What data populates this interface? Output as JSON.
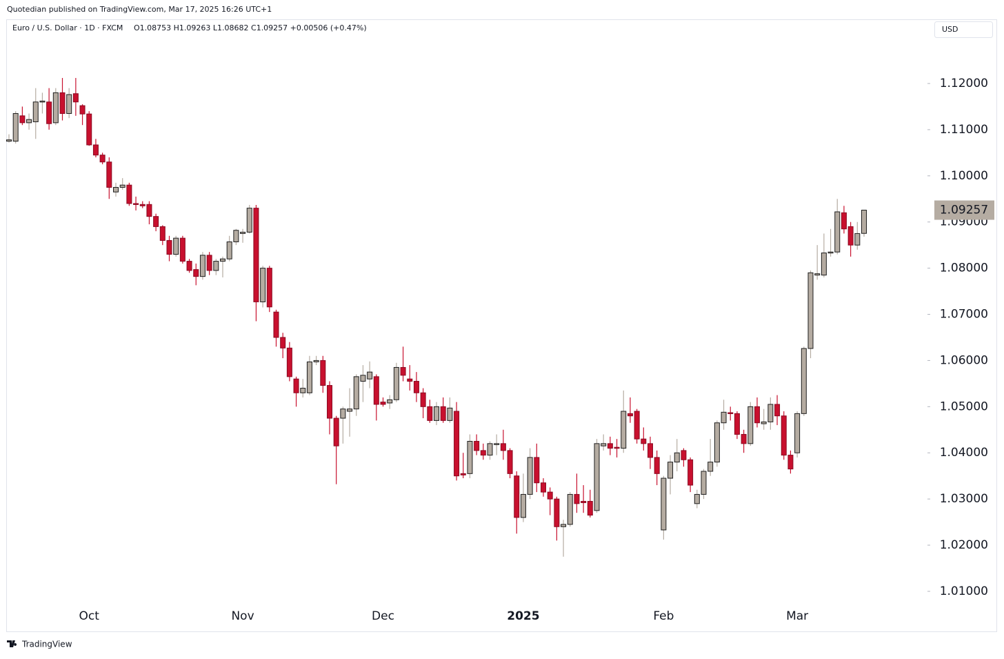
{
  "chart_data": {
    "type": "candlestick",
    "published": "Quotedian published on TradingView.com, Mar 17, 2025 16:26 UTC+1",
    "title": "Euro / U.S. Dollar · 1D · FXCM",
    "ohlc_text": "O1.08753  H1.09263  L1.08682  C1.09257  +0.00506 (+0.47%)",
    "currency": "USD",
    "footer": "TradingView",
    "up_color": "#b5aca2",
    "down_color": "#c8102e",
    "categories": [
      null,
      null,
      null,
      null,
      null,
      null,
      null,
      null,
      null,
      null,
      null,
      null,
      "Oct",
      null,
      null,
      null,
      null,
      null,
      null,
      null,
      null,
      null,
      null,
      null,
      null,
      null,
      null,
      null,
      null,
      null,
      null,
      null,
      null,
      null,
      null,
      "Nov",
      null,
      null,
      null,
      null,
      null,
      null,
      null,
      null,
      null,
      null,
      null,
      null,
      null,
      null,
      null,
      null,
      null,
      null,
      null,
      null,
      "Dec",
      null,
      null,
      null,
      null,
      null,
      null,
      null,
      null,
      null,
      null,
      null,
      null,
      null,
      null,
      null,
      null,
      null,
      null,
      null,
      null,
      "2025",
      null,
      null,
      null,
      null,
      null,
      null,
      null,
      null,
      null,
      null,
      null,
      null,
      null,
      null,
      null,
      null,
      null,
      null,
      null,
      null,
      "Feb",
      null,
      null,
      null,
      null,
      null,
      null,
      null,
      null,
      null,
      null,
      null,
      null,
      null,
      null,
      null,
      null,
      null,
      null,
      null,
      "Mar",
      null,
      null,
      null,
      null,
      null,
      null,
      null,
      null,
      null,
      null
    ],
    "open": [
      1.1075,
      1.1075,
      1.113,
      1.1115,
      1.1117,
      1.116,
      1.116,
      1.1115,
      1.118,
      1.1135,
      1.1178,
      1.1152,
      1.1134,
      1.1067,
      1.1045,
      1.103,
      1.0965,
      1.0975,
      1.098,
      1.094,
      1.0938,
      1.0938,
      1.0912,
      1.089,
      1.086,
      1.083,
      1.0865,
      1.0815,
      1.0797,
      1.0782,
      1.0828,
      1.0795,
      1.0815,
      1.082,
      1.0857,
      1.0875,
      1.0878,
      1.093,
      1.0727,
      1.08,
      1.0705,
      1.065,
      1.0627,
      1.056,
      1.053,
      1.053,
      1.0597,
      1.06,
      1.0546,
      1.0475,
      1.0475,
      1.049,
      1.0495,
      1.0555,
      1.056,
      1.0565,
      1.051,
      1.0508,
      1.0515,
      1.0585,
      1.056,
      1.0555,
      1.053,
      1.05,
      1.047,
      1.05,
      1.047,
      1.049,
      1.0355,
      1.0355,
      1.0425,
      1.0405,
      1.0395,
      1.0418,
      1.042,
      1.0405,
      1.035,
      1.026,
      1.031,
      1.039,
      1.0335,
      1.0315,
      1.03,
      1.024,
      1.0245,
      1.031,
      1.0295,
      1.0295,
      1.0275,
      1.0415,
      1.042,
      1.0412,
      1.041,
      1.0485,
      1.049,
      1.043,
      1.042,
      1.039,
      1.0233,
      1.0345,
      1.038,
      1.0405,
      1.0385,
      1.029,
      1.031,
      1.036,
      1.038,
      1.0465,
      1.0487,
      1.0485,
      1.044,
      1.042,
      1.05,
      1.0463,
      1.0467,
      1.0505,
      1.048,
      1.0395,
      1.04,
      1.0485,
      1.0626,
      1.0785,
      1.0785,
      1.0833,
      1.0835,
      1.092,
      1.089,
      1.085,
      1.08753
    ],
    "high": [
      1.109,
      1.114,
      1.115,
      1.1135,
      1.119,
      1.118,
      1.119,
      1.119,
      1.1212,
      1.119,
      1.1212,
      1.1155,
      1.114,
      1.108,
      1.105,
      1.104,
      1.0985,
      1.0995,
      1.0985,
      1.0955,
      1.0945,
      1.0945,
      1.0918,
      1.0893,
      1.087,
      1.087,
      1.087,
      1.082,
      1.081,
      1.0835,
      1.0835,
      1.082,
      1.0825,
      1.087,
      1.0885,
      1.0885,
      1.0937,
      1.0937,
      1.0805,
      1.0805,
      1.071,
      1.066,
      1.064,
      1.0565,
      1.056,
      1.061,
      1.061,
      1.061,
      1.0555,
      1.048,
      1.05,
      1.054,
      1.057,
      1.059,
      1.0598,
      1.057,
      1.052,
      1.0525,
      1.0595,
      1.063,
      1.059,
      1.0575,
      1.054,
      1.0515,
      1.051,
      1.052,
      1.052,
      1.051,
      1.04,
      1.044,
      1.044,
      1.042,
      1.0425,
      1.044,
      1.045,
      1.041,
      1.036,
      1.0355,
      1.041,
      1.042,
      1.0345,
      1.0325,
      1.0305,
      1.0255,
      1.0315,
      1.0355,
      1.033,
      1.032,
      1.043,
      1.044,
      1.0435,
      1.043,
      1.0535,
      1.052,
      1.0495,
      1.0455,
      1.0435,
      1.0405,
      1.035,
      1.0395,
      1.043,
      1.041,
      1.039,
      1.032,
      1.0365,
      1.043,
      1.047,
      1.0515,
      1.05,
      1.049,
      1.045,
      1.051,
      1.052,
      1.0495,
      1.052,
      1.0525,
      1.049,
      1.0405,
      1.049,
      1.063,
      1.0795,
      1.085,
      1.0875,
      1.0885,
      1.095,
      1.0935,
      1.09,
      1.09,
      1.09263
    ],
    "low": [
      1.1072,
      1.107,
      1.111,
      1.11,
      1.108,
      1.1135,
      1.11,
      1.111,
      1.112,
      1.1125,
      1.113,
      1.111,
      1.1065,
      1.104,
      1.1025,
      1.095,
      1.0955,
      1.097,
      1.0935,
      1.0925,
      1.093,
      1.0895,
      1.088,
      1.085,
      1.0815,
      1.0825,
      1.081,
      1.079,
      1.0763,
      1.0775,
      1.0785,
      1.0785,
      1.078,
      1.0815,
      1.085,
      1.0855,
      1.0875,
      1.0685,
      1.0715,
      1.0705,
      1.063,
      1.0605,
      1.0555,
      1.05,
      1.052,
      1.0525,
      1.059,
      1.053,
      1.044,
      1.0332,
      1.042,
      1.0435,
      1.048,
      1.051,
      1.054,
      1.047,
      1.05,
      1.0495,
      1.051,
      1.0555,
      1.0535,
      1.051,
      1.0475,
      1.0465,
      1.046,
      1.0465,
      1.0465,
      1.034,
      1.0345,
      1.0345,
      1.0395,
      1.0385,
      1.0385,
      1.0395,
      1.0385,
      1.0345,
      1.0225,
      1.025,
      1.03,
      1.0315,
      1.0305,
      1.0265,
      1.021,
      1.0175,
      1.024,
      1.027,
      1.027,
      1.026,
      1.027,
      1.0405,
      1.0395,
      1.039,
      1.04,
      1.0465,
      1.042,
      1.0405,
      1.0365,
      1.033,
      1.0212,
      1.031,
      1.036,
      1.037,
      1.0315,
      1.028,
      1.03,
      1.035,
      1.037,
      1.045,
      1.047,
      1.043,
      1.04,
      1.0415,
      1.0455,
      1.045,
      1.045,
      1.046,
      1.0385,
      1.0355,
      1.039,
      1.048,
      1.0605,
      1.0775,
      1.078,
      1.0825,
      1.083,
      1.0875,
      1.0825,
      1.084,
      1.08682
    ],
    "close": [
      1.1078,
      1.1135,
      1.1115,
      1.1122,
      1.116,
      1.1162,
      1.1113,
      1.118,
      1.1135,
      1.1176,
      1.116,
      1.1134,
      1.1067,
      1.1045,
      1.103,
      1.0975,
      1.0975,
      1.098,
      1.094,
      1.0938,
      1.0935,
      1.0912,
      1.089,
      1.086,
      1.083,
      1.0865,
      1.0815,
      1.0795,
      1.0782,
      1.0828,
      1.0795,
      1.0815,
      1.082,
      1.0857,
      1.0882,
      1.0878,
      1.093,
      1.0727,
      1.08,
      1.0716,
      1.065,
      1.0627,
      1.0565,
      1.053,
      1.054,
      1.0597,
      1.06,
      1.0546,
      1.0475,
      1.0415,
      1.0495,
      1.0495,
      1.0565,
      1.0568,
      1.0575,
      1.0505,
      1.0505,
      1.0515,
      1.0585,
      1.0568,
      1.0555,
      1.053,
      1.05,
      1.047,
      1.05,
      1.047,
      1.0497,
      1.035,
      1.0352,
      1.0425,
      1.0405,
      1.0395,
      1.042,
      1.042,
      1.0405,
      1.0355,
      1.026,
      1.031,
      1.039,
      1.0335,
      1.0315,
      1.03,
      1.024,
      1.0245,
      1.031,
      1.029,
      1.0292,
      1.0265,
      1.042,
      1.042,
      1.041,
      1.041,
      1.049,
      1.048,
      1.043,
      1.042,
      1.039,
      1.0355,
      1.0345,
      1.038,
      1.04,
      1.0385,
      1.033,
      1.031,
      1.036,
      1.038,
      1.0465,
      1.0488,
      1.0485,
      1.044,
      1.042,
      1.05,
      1.0465,
      1.0467,
      1.0505,
      1.048,
      1.0395,
      1.0365,
      1.0485,
      1.0626,
      1.079,
      1.0788,
      1.0833,
      1.0835,
      1.0922,
      1.0885,
      1.085,
      1.0875,
      1.09257
    ],
    "ylim": [
      1.0073,
      1.1339
    ],
    "yticks": [
      {
        "value": 1.01,
        "label": "1.01000"
      },
      {
        "value": 1.02,
        "label": "1.02000"
      },
      {
        "value": 1.03,
        "label": "1.03000"
      },
      {
        "value": 1.04,
        "label": "1.04000"
      },
      {
        "value": 1.05,
        "label": "1.05000"
      },
      {
        "value": 1.06,
        "label": "1.06000"
      },
      {
        "value": 1.07,
        "label": "1.07000"
      },
      {
        "value": 1.08,
        "label": "1.08000"
      },
      {
        "value": 1.09,
        "label": "1.09000"
      },
      {
        "value": 1.1,
        "label": "1.10000"
      },
      {
        "value": 1.11,
        "label": "1.11000"
      },
      {
        "value": 1.12,
        "label": "1.12000"
      }
    ],
    "grid": false
  }
}
